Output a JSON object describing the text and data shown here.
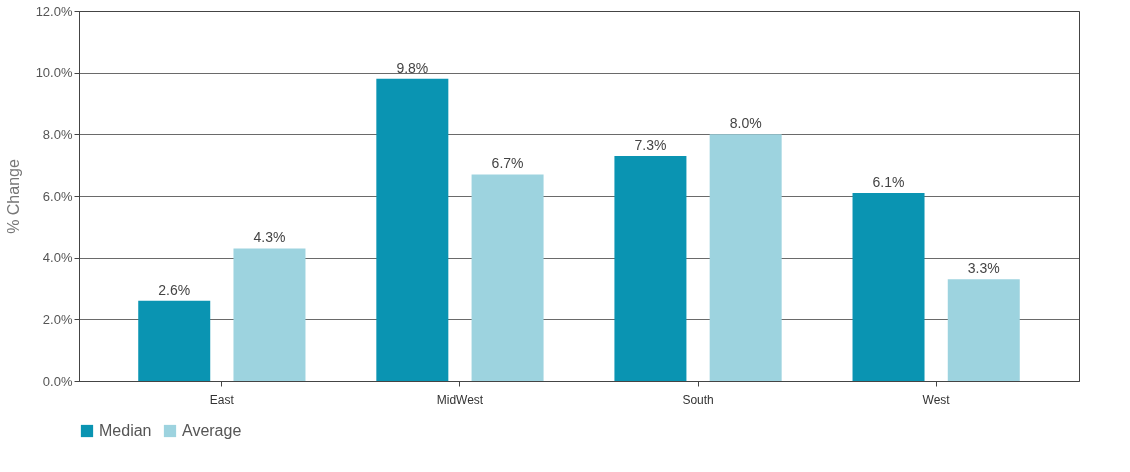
{
  "chart_data": {
    "type": "bar",
    "ylabel": "% Change",
    "categories": [
      "East",
      "MidWest",
      "South",
      "West"
    ],
    "series": [
      {
        "name": "Median",
        "color": "#0a94b2",
        "values": [
          2.6,
          9.8,
          7.3,
          6.1
        ],
        "value_labels": [
          "2.6%",
          "9.8%",
          "7.3%",
          "6.1%"
        ]
      },
      {
        "name": "Average",
        "color": "#9dd3df",
        "values": [
          4.3,
          6.7,
          8.0,
          3.3
        ],
        "value_labels": [
          "4.3%",
          "6.7%",
          "8.0%",
          "3.3%"
        ]
      }
    ],
    "ylim": [
      0,
      12
    ],
    "yticks": [
      {
        "value": 0,
        "label": "0.0%"
      },
      {
        "value": 2,
        "label": "2.0%"
      },
      {
        "value": 4,
        "label": "4.0%"
      },
      {
        "value": 6,
        "label": "6.0%"
      },
      {
        "value": 8,
        "label": "8.0%"
      },
      {
        "value": 10,
        "label": "10.0%"
      },
      {
        "value": 12,
        "label": "12.0%"
      }
    ],
    "grid": "y",
    "legend": "bottom"
  }
}
